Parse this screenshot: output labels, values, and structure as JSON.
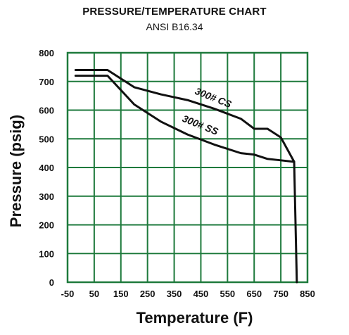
{
  "chart_data": {
    "type": "line",
    "title": "PRESSURE/TEMPERATURE CHART",
    "subtitle": "ANSI B16.34",
    "xlabel": "Temperature (F)",
    "ylabel": "Pressure (psig)",
    "xlim": [
      -50,
      850
    ],
    "ylim": [
      0,
      800
    ],
    "xticks": [
      "-50",
      "50",
      "150",
      "250",
      "350",
      "450",
      "550",
      "650",
      "750",
      "850"
    ],
    "xtick_values": [
      -50,
      50,
      150,
      250,
      350,
      450,
      550,
      650,
      750,
      850
    ],
    "yticks": [
      "0",
      "100",
      "200",
      "300",
      "400",
      "500",
      "600",
      "700",
      "800"
    ],
    "ytick_values": [
      0,
      100,
      200,
      300,
      400,
      500,
      600,
      700,
      800
    ],
    "grid": true,
    "grid_color": "#1e7a3c",
    "line_color": "#111111",
    "series": [
      {
        "name": "300# CS",
        "x": [
          -20,
          100,
          200,
          300,
          400,
          500,
          600,
          650,
          700,
          750,
          800,
          810
        ],
        "y": [
          740,
          740,
          680,
          655,
          635,
          605,
          570,
          535,
          535,
          505,
          420,
          0
        ]
      },
      {
        "name": "300# SS",
        "x": [
          -20,
          100,
          200,
          300,
          400,
          500,
          600,
          650,
          700,
          750,
          800
        ],
        "y": [
          720,
          720,
          620,
          560,
          515,
          480,
          450,
          445,
          430,
          425,
          420
        ]
      }
    ]
  }
}
